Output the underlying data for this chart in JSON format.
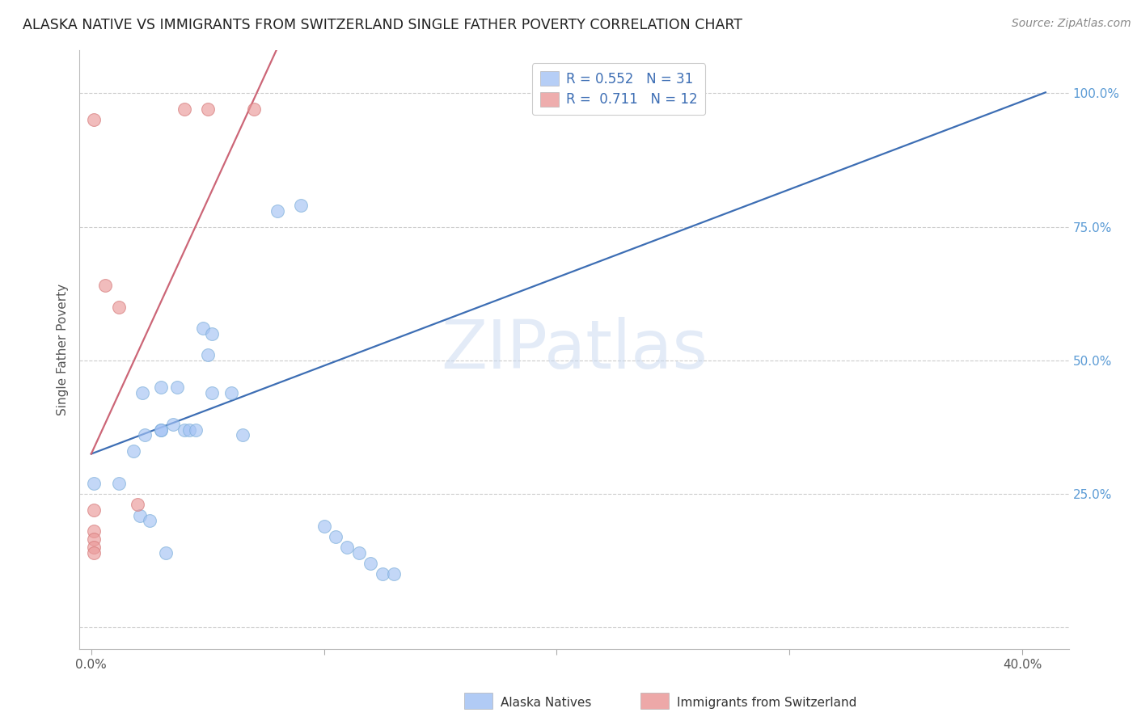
{
  "title": "ALASKA NATIVE VS IMMIGRANTS FROM SWITZERLAND SINGLE FATHER POVERTY CORRELATION CHART",
  "source": "Source: ZipAtlas.com",
  "ylabel": "Single Father Poverty",
  "x_ticks": [
    0.0,
    0.1,
    0.2,
    0.3,
    0.4
  ],
  "xlim": [
    -0.005,
    0.42
  ],
  "ylim": [
    -0.04,
    1.08
  ],
  "legend_blue_label": "Alaska Natives",
  "legend_pink_label": "Immigrants from Switzerland",
  "blue_R": "0.552",
  "blue_N": "31",
  "pink_R": "0.711",
  "pink_N": "12",
  "blue_color": "#a4c2f4",
  "pink_color": "#ea9999",
  "blue_line_color": "#3d6eb4",
  "pink_line_color": "#cc6677",
  "blue_alpha": 0.65,
  "pink_alpha": 0.65,
  "watermark": "ZIPatlas",
  "blue_points": [
    [
      0.001,
      0.27
    ],
    [
      0.012,
      0.27
    ],
    [
      0.018,
      0.33
    ],
    [
      0.021,
      0.21
    ],
    [
      0.022,
      0.44
    ],
    [
      0.023,
      0.36
    ],
    [
      0.025,
      0.2
    ],
    [
      0.03,
      0.45
    ],
    [
      0.03,
      0.37
    ],
    [
      0.03,
      0.37
    ],
    [
      0.032,
      0.14
    ],
    [
      0.035,
      0.38
    ],
    [
      0.037,
      0.45
    ],
    [
      0.04,
      0.37
    ],
    [
      0.042,
      0.37
    ],
    [
      0.045,
      0.37
    ],
    [
      0.048,
      0.56
    ],
    [
      0.05,
      0.51
    ],
    [
      0.052,
      0.55
    ],
    [
      0.052,
      0.44
    ],
    [
      0.06,
      0.44
    ],
    [
      0.065,
      0.36
    ],
    [
      0.08,
      0.78
    ],
    [
      0.09,
      0.79
    ],
    [
      0.1,
      0.19
    ],
    [
      0.105,
      0.17
    ],
    [
      0.11,
      0.15
    ],
    [
      0.115,
      0.14
    ],
    [
      0.12,
      0.12
    ],
    [
      0.125,
      0.1
    ],
    [
      0.13,
      0.1
    ]
  ],
  "pink_points": [
    [
      0.001,
      0.95
    ],
    [
      0.001,
      0.22
    ],
    [
      0.001,
      0.18
    ],
    [
      0.001,
      0.165
    ],
    [
      0.001,
      0.15
    ],
    [
      0.001,
      0.14
    ],
    [
      0.006,
      0.64
    ],
    [
      0.012,
      0.6
    ],
    [
      0.02,
      0.23
    ],
    [
      0.04,
      0.97
    ],
    [
      0.05,
      0.97
    ],
    [
      0.07,
      0.97
    ]
  ],
  "blue_intercept": 0.325,
  "blue_slope": 1.65,
  "pink_intercept": 0.325,
  "pink_slope": 9.5,
  "pink_line_xmax": 0.085
}
